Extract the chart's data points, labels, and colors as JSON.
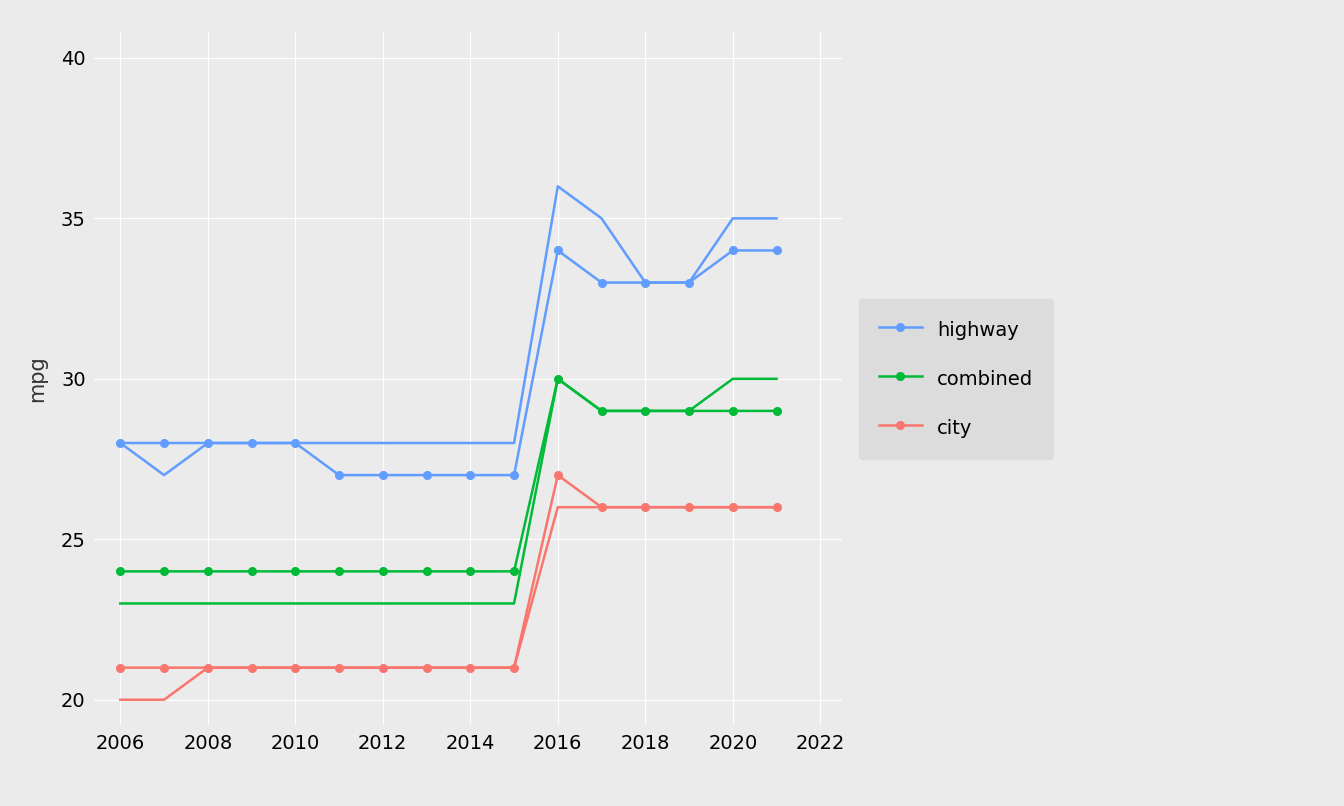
{
  "ylabel": "mpg",
  "bg_color": "#EBEBEB",
  "grid_color": "#FFFFFF",
  "legend_bg": "#DCDCDC",
  "colors": {
    "highway": "#619CFF",
    "combined": "#00BA38",
    "city": "#F8766D"
  },
  "manual": {
    "years": [
      2006,
      2007,
      2008,
      2009,
      2010,
      2011,
      2012,
      2013,
      2014,
      2015,
      2016,
      2017,
      2018,
      2019,
      2020,
      2021
    ],
    "highway": [
      28,
      28,
      28,
      28,
      28,
      27,
      27,
      27,
      27,
      27,
      34,
      33,
      33,
      33,
      34,
      34
    ],
    "combined": [
      24,
      24,
      24,
      24,
      24,
      24,
      24,
      24,
      24,
      24,
      30,
      29,
      29,
      29,
      29,
      29
    ],
    "city": [
      21,
      21,
      21,
      21,
      21,
      21,
      21,
      21,
      21,
      21,
      27,
      26,
      26,
      26,
      26,
      26
    ]
  },
  "auto": {
    "years": [
      2006,
      2007,
      2008,
      2009,
      2010,
      2011,
      2012,
      2013,
      2014,
      2015,
      2016,
      2017,
      2018,
      2019,
      2020,
      2021
    ],
    "highway": [
      28,
      27,
      28,
      28,
      28,
      28,
      28,
      28,
      28,
      28,
      36,
      35,
      33,
      33,
      35,
      35
    ],
    "combined": [
      23,
      23,
      23,
      23,
      23,
      23,
      23,
      23,
      23,
      23,
      30,
      29,
      29,
      29,
      30,
      30
    ],
    "city": [
      20,
      20,
      21,
      21,
      21,
      21,
      21,
      21,
      21,
      21,
      26,
      26,
      26,
      26,
      26,
      26
    ]
  },
  "xlim": [
    2005.4,
    2022.5
  ],
  "ylim": [
    19.2,
    40.8
  ],
  "xticks": [
    2006,
    2008,
    2010,
    2012,
    2014,
    2016,
    2018,
    2020,
    2022
  ],
  "yticks": [
    20,
    25,
    30,
    35,
    40
  ]
}
